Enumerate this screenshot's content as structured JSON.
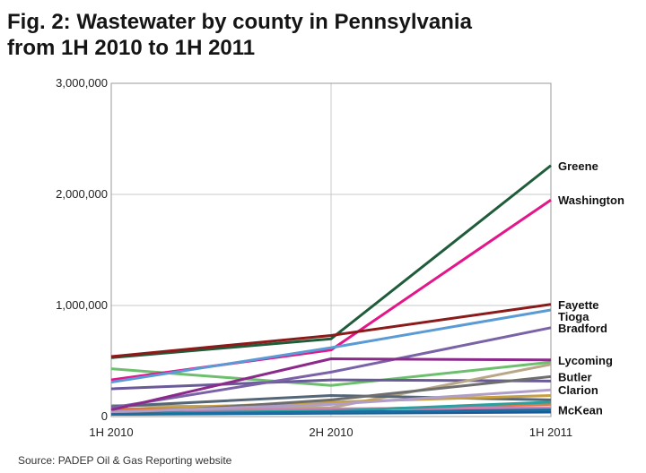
{
  "title_line1": "Fig. 2: Wastewater by county in Pennsylvania",
  "title_line2": "from 1H 2010 to 1H 2011",
  "source": "Source: PADEP Oil & Gas Reporting website",
  "chart_data": {
    "type": "line",
    "title": "Fig. 2: Wastewater by county in Pennsylvania from 1H 2010 to 1H 2011",
    "categories": [
      "1H 2010",
      "2H 2010",
      "1H 2011"
    ],
    "y_ticks": [
      "0",
      "1,000,000",
      "2,000,000",
      "3,000,000"
    ],
    "ylim": [
      0,
      3000000
    ],
    "grid": true,
    "legend": "direct labels at right end of lines",
    "series": [
      {
        "name": "Greene",
        "values": [
          530000,
          700000,
          2260000
        ],
        "color": "#1f5c3a"
      },
      {
        "name": "Washington",
        "values": [
          330000,
          600000,
          1950000
        ],
        "color": "#e3168a"
      },
      {
        "name": "Fayette",
        "values": [
          540000,
          730000,
          1010000
        ],
        "color": "#8b1a1a"
      },
      {
        "name": "Tioga",
        "values": [
          310000,
          620000,
          960000
        ],
        "color": "#5b9bd5"
      },
      {
        "name": "Bradford",
        "values": [
          80000,
          400000,
          800000
        ],
        "color": "#7a62a8"
      },
      {
        "name": "Lycoming",
        "values": [
          60000,
          520000,
          510000
        ],
        "color": "#8b2a8b"
      },
      {
        "name": "Butler",
        "values": [
          20000,
          150000,
          360000
        ],
        "color": "#6e6e6e"
      },
      {
        "name": "Clarion",
        "values": [
          40000,
          110000,
          240000
        ],
        "color": "#b09ec9"
      },
      {
        "name": "McKean",
        "values": [
          20000,
          40000,
          60000
        ],
        "color": "#1a6fa0"
      },
      {
        "name": "",
        "values": [
          430000,
          280000,
          490000
        ],
        "color": "#6dbf6d"
      },
      {
        "name": "",
        "values": [
          250000,
          330000,
          320000
        ],
        "color": "#6a5a9a"
      },
      {
        "name": "",
        "values": [
          100000,
          80000,
          470000
        ],
        "color": "#b8a888"
      },
      {
        "name": "",
        "values": [
          90000,
          190000,
          150000
        ],
        "color": "#556677"
      },
      {
        "name": "",
        "values": [
          60000,
          130000,
          190000
        ],
        "color": "#c8a040"
      },
      {
        "name": "",
        "values": [
          70000,
          60000,
          110000
        ],
        "color": "#e07840"
      },
      {
        "name": "",
        "values": [
          40000,
          70000,
          80000
        ],
        "color": "#d080b0"
      },
      {
        "name": "",
        "values": [
          30000,
          50000,
          130000
        ],
        "color": "#2aa0a0"
      },
      {
        "name": "",
        "values": [
          20000,
          30000,
          40000
        ],
        "color": "#1a5a9a"
      }
    ]
  }
}
